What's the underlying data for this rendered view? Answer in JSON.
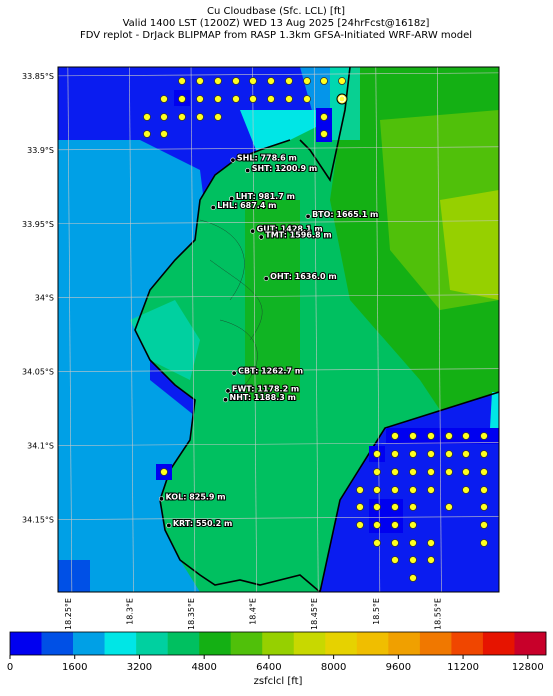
{
  "chart_data": {
    "type": "map",
    "title_lines": [
      "Cu Cloudbase (Sfc. LCL) [ft]",
      "Valid 1400 LST (1200Z) WED 13 Aug 2025 [24hrFcst@1618z]",
      "FDV replot - DrJack BLIPMAP from RASP 1.3km GFSA-Initiated WRF-ARW model"
    ],
    "xlim": [
      18.242,
      18.6
    ],
    "ylim": [
      33.844,
      34.199
    ],
    "xticks": [
      {
        "value": 18.25,
        "label": "18.25°E"
      },
      {
        "value": 18.3,
        "label": "18.3°E"
      },
      {
        "value": 18.35,
        "label": "18.35°E"
      },
      {
        "value": 18.4,
        "label": "18.4°E"
      },
      {
        "value": 18.45,
        "label": "18.45°E"
      },
      {
        "value": 18.5,
        "label": "18.5°E"
      },
      {
        "value": 18.55,
        "label": "18.55°E"
      }
    ],
    "yticks": [
      {
        "value": 33.85,
        "label": "33.85°S"
      },
      {
        "value": 33.9,
        "label": "33.9°S"
      },
      {
        "value": 33.95,
        "label": "33.95°S"
      },
      {
        "value": 34.0,
        "label": "34°S"
      },
      {
        "value": 34.05,
        "label": "34.05°S"
      },
      {
        "value": 34.1,
        "label": "34.1°S"
      },
      {
        "value": 34.15,
        "label": "34.15°S"
      }
    ],
    "grid": true,
    "stations": [
      {
        "label": "SHL: 778.6 m",
        "lon": 18.384,
        "lat": 33.907
      },
      {
        "label": "SHT: 1200.9 m",
        "lon": 18.396,
        "lat": 33.914
      },
      {
        "label": "LHT: 981.7 m",
        "lon": 18.383,
        "lat": 33.933
      },
      {
        "label": "LHL: 687.4 m",
        "lon": 18.368,
        "lat": 33.939
      },
      {
        "label": "BTO: 1665.1 m",
        "lon": 18.445,
        "lat": 33.945
      },
      {
        "label": "GUT: 1428.1 m",
        "lon": 18.4,
        "lat": 33.955
      },
      {
        "label": "TMT: 1596.8 m",
        "lon": 18.407,
        "lat": 33.959
      },
      {
        "label": "OHT: 1636.0 m",
        "lon": 18.411,
        "lat": 33.987
      },
      {
        "label": "CBT: 1262.7 m",
        "lon": 18.385,
        "lat": 34.051
      },
      {
        "label": "FWT: 1178.2 m",
        "lon": 18.38,
        "lat": 34.063
      },
      {
        "label": "NHT: 1188.3 m",
        "lon": 18.378,
        "lat": 34.069
      },
      {
        "label": "KOL: 825.9 m",
        "lon": 18.326,
        "lat": 34.136
      },
      {
        "label": "KRT: 550.2 m",
        "lon": 18.332,
        "lat": 34.154
      }
    ],
    "colorbar": {
      "label": "zsfclcl [ft]",
      "lim": [
        0,
        13250
      ],
      "ticks": [
        0,
        1600,
        3200,
        4800,
        6400,
        8000,
        9600,
        11200,
        12800
      ],
      "colors": [
        "#0000f0",
        "#0050e6",
        "#00a0e6",
        "#00e6e6",
        "#00d0a0",
        "#00c060",
        "#14b014",
        "#50c00a",
        "#96d000",
        "#c8d800",
        "#e6d200",
        "#f0be00",
        "#f0a000",
        "#f07800",
        "#f04600",
        "#e61400",
        "#c8002a"
      ]
    }
  }
}
